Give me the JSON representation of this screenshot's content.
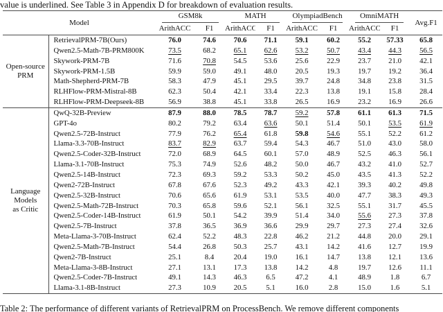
{
  "intro_text": "value is underlined. See Table 3 in Appendix D for breakdown of evaluation results.",
  "caption": "Table 2: The performance of different variants of RetrievalPRM on ProcessBench. We remove different components",
  "colors": {
    "text": "#111111",
    "rule": "#4a4a4a",
    "background": "#ffffff"
  },
  "table": {
    "header": {
      "model_label": "Model",
      "benchmark_groups": [
        "GSM8k",
        "MATH",
        "OlympiadBench",
        "OmniMATH"
      ],
      "metric_labels": [
        "ArithACC",
        "F1"
      ],
      "avg_label": "Avg.F1"
    },
    "sections": [
      {
        "group_label_lines": [
          "Open-source",
          "PRM"
        ],
        "rows": [
          {
            "model": "RetrievalPRM-7B(Ours)",
            "values": [
              "76.0",
              "74.6",
              "70.6",
              "71.1",
              "59.1",
              "60.2",
              "55.2",
              "57.33",
              "65.8"
            ],
            "styles": [
              "b",
              "b",
              "b",
              "b",
              "b",
              "b",
              "b",
              "b",
              "b"
            ]
          },
          {
            "model": "Qwen2.5-Math-7B-PRM800K",
            "values": [
              "73.5",
              "68.2",
              "65.1",
              "62.6",
              "53.2",
              "50.7",
              "43.4",
              "44.3",
              "56.5"
            ],
            "styles": [
              "u",
              "",
              "u",
              "u",
              "u",
              "u",
              "u",
              "u",
              "u"
            ]
          },
          {
            "model": "Skywork-PRM-7B",
            "values": [
              "71.6",
              "70.8",
              "54.5",
              "53.6",
              "25.6",
              "22.9",
              "23.7",
              "21.0",
              "42.1"
            ],
            "styles": [
              "",
              "u",
              "",
              "",
              "",
              "",
              "",
              "",
              ""
            ]
          },
          {
            "model": "Skywork-PRM-1.5B",
            "values": [
              "59.9",
              "59.0",
              "49.1",
              "48.0",
              "20.5",
              "19.3",
              "19.7",
              "19.2",
              "36.4"
            ],
            "styles": []
          },
          {
            "model": "Math-Shepherd-PRM-7B",
            "values": [
              "58.3",
              "47.9",
              "45.1",
              "29.5",
              "39.7",
              "24.8",
              "34.8",
              "23.8",
              "31.5"
            ],
            "styles": []
          },
          {
            "model": "RLHFlow-PRM-Mistral-8B",
            "values": [
              "62.3",
              "50.4",
              "42.1",
              "33.4",
              "22.3",
              "13.8",
              "19.1",
              "15.8",
              "28.4"
            ],
            "styles": []
          },
          {
            "model": "RLHFlow-PRM-Deepseek-8B",
            "values": [
              "56.9",
              "38.8",
              "45.1",
              "33.8",
              "26.5",
              "16.9",
              "23.2",
              "16.9",
              "26.6"
            ],
            "styles": []
          }
        ]
      },
      {
        "group_label_lines": [
          "Language",
          "Models",
          "as Critic"
        ],
        "rows": [
          {
            "model": "QwQ-32B-Preview",
            "values": [
              "87.9",
              "88.0",
              "78.5",
              "78.7",
              "59.2",
              "57.8",
              "61.1",
              "61.3",
              "71.5"
            ],
            "styles": [
              "b",
              "b",
              "b",
              "b",
              "u",
              "b",
              "b",
              "b",
              "b"
            ]
          },
          {
            "model": "GPT-4o",
            "values": [
              "80.2",
              "79.2",
              "63.4",
              "63.6",
              "50.1",
              "51.4",
              "50.1",
              "53.5",
              "61.9"
            ],
            "styles": [
              "",
              "",
              "",
              "u",
              "",
              "",
              "",
              "u",
              "u"
            ]
          },
          {
            "model": "Qwen2.5-72B-Instruct",
            "values": [
              "77.9",
              "76.2",
              "65.4",
              "61.8",
              "59.8",
              "54.6",
              "55.1",
              "52.2",
              "61.2"
            ],
            "styles": [
              "",
              "",
              "u",
              "",
              "b",
              "u",
              "",
              "",
              ""
            ]
          },
          {
            "model": "Llama-3.3-70B-Instruct",
            "values": [
              "83.7",
              "82.9",
              "63.7",
              "59.4",
              "54.3",
              "46.7",
              "51.0",
              "43.0",
              "58.0"
            ],
            "styles": [
              "u",
              "u",
              "",
              "",
              "",
              "",
              "",
              "",
              ""
            ]
          },
          {
            "model": "Qwen2.5-Coder-32B-Instruct",
            "values": [
              "72.0",
              "68.9",
              "64.5",
              "60.1",
              "57.0",
              "48.9",
              "52.5",
              "46.3",
              "56.1"
            ],
            "styles": []
          },
          {
            "model": "Llama-3.1-70B-Instruct",
            "values": [
              "75.3",
              "74.9",
              "52.6",
              "48.2",
              "50.0",
              "46.7",
              "43.2",
              "41.0",
              "52.7"
            ],
            "styles": []
          },
          {
            "model": "Qwen2.5-14B-Instruct",
            "values": [
              "72.3",
              "69.3",
              "59.2",
              "53.3",
              "50.2",
              "45.0",
              "43.5",
              "41.3",
              "52.2"
            ],
            "styles": []
          },
          {
            "model": "Qwen2-72B-Instruct",
            "values": [
              "67.8",
              "67.6",
              "52.3",
              "49.2",
              "43.3",
              "42.1",
              "39.3",
              "40.2",
              "49.8"
            ],
            "styles": []
          },
          {
            "model": "Qwen2.5-32B-Instruct",
            "values": [
              "70.6",
              "65.6",
              "61.9",
              "53.1",
              "53.5",
              "40.0",
              "47.7",
              "38.3",
              "49.3"
            ],
            "styles": []
          },
          {
            "model": "Qwen2.5-Math-72B-Instruct",
            "values": [
              "70.3",
              "65.8",
              "59.6",
              "52.1",
              "56.1",
              "32.5",
              "55.1",
              "31.7",
              "45.5"
            ],
            "styles": []
          },
          {
            "model": "Qwen2.5-Coder-14B-Instruct",
            "values": [
              "61.9",
              "50.1",
              "54.2",
              "39.9",
              "51.4",
              "34.0",
              "55.6",
              "27.3",
              "37.8"
            ],
            "styles": [
              "",
              "",
              "",
              "",
              "",
              "",
              "u",
              "",
              ""
            ]
          },
          {
            "model": "Qwen2.5-7B-Instruct",
            "values": [
              "37.8",
              "36.5",
              "36.9",
              "36.6",
              "29.9",
              "29.7",
              "27.3",
              "27.4",
              "32.6"
            ],
            "styles": []
          },
          {
            "model": "Meta-Llama-3-70B-Instruct",
            "values": [
              "62.4",
              "52.2",
              "48.3",
              "22.8",
              "46.2",
              "21.2",
              "44.8",
              "20.0",
              "29.1"
            ],
            "styles": []
          },
          {
            "model": "Qwen2.5-Math-7B-Instruct",
            "values": [
              "54.4",
              "26.8",
              "50.3",
              "25.7",
              "43.1",
              "14.2",
              "41.6",
              "12.7",
              "19.9"
            ],
            "styles": []
          },
          {
            "model": "Qwen2-7B-Instruct",
            "values": [
              "25.1",
              "8.4",
              "20.4",
              "19.0",
              "16.1",
              "14.7",
              "13.8",
              "12.1",
              "13.6"
            ],
            "styles": []
          },
          {
            "model": "Meta-Llama-3-8B-Instruct",
            "values": [
              "27.1",
              "13.1",
              "17.3",
              "13.8",
              "14.2",
              "4.8",
              "19.7",
              "12.6",
              "11.1"
            ],
            "styles": []
          },
          {
            "model": "Qwen2.5-Coder-7B-Instruct",
            "values": [
              "49.1",
              "14.3",
              "46.3",
              "6.5",
              "47.2",
              "4.1",
              "48.9",
              "1.8",
              "6.7"
            ],
            "styles": []
          },
          {
            "model": "Llama-3.1-8B-Instruct",
            "values": [
              "27.3",
              "10.9",
              "20.5",
              "5.1",
              "16.0",
              "2.8",
              "15.0",
              "1.6",
              "5.1"
            ],
            "styles": []
          }
        ]
      }
    ]
  }
}
